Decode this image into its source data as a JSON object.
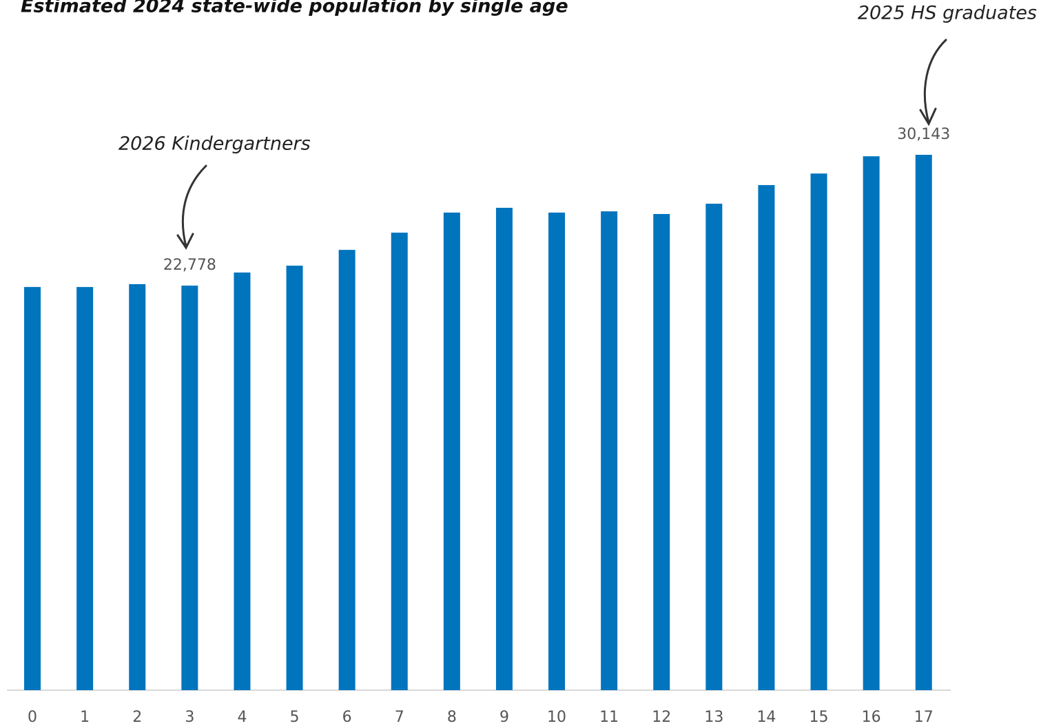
{
  "chart_data": {
    "type": "bar",
    "title": "Estimated 2024 state-wide population by single age",
    "categories": [
      "0",
      "1",
      "2",
      "3",
      "4",
      "5",
      "6",
      "7",
      "8",
      "9",
      "10",
      "11",
      "12",
      "13",
      "14",
      "15",
      "16",
      "17"
    ],
    "values": [
      22700,
      22700,
      22860,
      22778,
      23515,
      23900,
      24790,
      25760,
      26890,
      27160,
      26890,
      26960,
      26810,
      27390,
      28440,
      29090,
      30060,
      30143
    ],
    "value_labels": [
      null,
      null,
      null,
      "22,778",
      null,
      null,
      null,
      null,
      null,
      null,
      null,
      null,
      null,
      null,
      null,
      null,
      null,
      "30,143"
    ],
    "color": "#0174be",
    "annotations": [
      {
        "text": "2026 Kindergartners",
        "category": "3"
      },
      {
        "text": "2025 HS graduates",
        "category": "17"
      }
    ]
  }
}
